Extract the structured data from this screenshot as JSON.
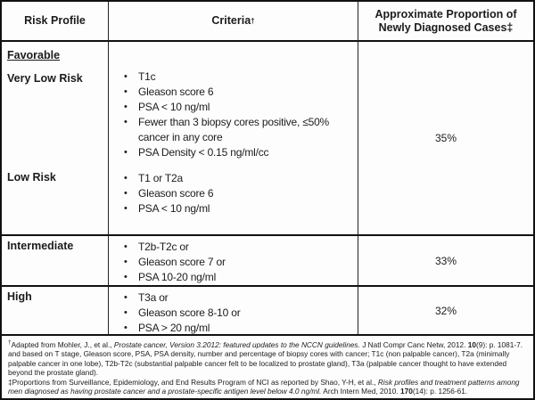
{
  "table": {
    "header": {
      "col1": "Risk Profile",
      "col2": "Criteria",
      "col2_sup": "†",
      "col3_line1": "Approximate Proportion of",
      "col3_line2": "Newly Diagnosed Cases‡"
    },
    "favorable": {
      "group_label": "Favorable",
      "sub_rows": [
        {
          "label": "Very Low Risk",
          "criteria": [
            "T1c",
            "Gleason score 6",
            "PSA < 10 ng/ml",
            "Fewer than 3 biopsy cores positive, ≤50%\ncancer in any core",
            "PSA Density < 0.15 ng/ml/cc"
          ]
        },
        {
          "label": "Low Risk",
          "criteria": [
            "T1 or T2a",
            "Gleason score 6",
            "PSA < 10 ng/ml"
          ]
        }
      ],
      "proportion": "35%"
    },
    "rows": [
      {
        "label": "Intermediate",
        "criteria": [
          "T2b-T2c or",
          "Gleason score 7 or",
          "PSA 10-20 ng/ml"
        ],
        "proportion": "33%"
      },
      {
        "label": "High",
        "criteria": [
          "T3a or",
          "Gleason score 8-10 or",
          "PSA > 20 ng/ml"
        ],
        "proportion": "32%"
      }
    ]
  },
  "footnotes": {
    "note1": [
      {
        "t": "†",
        "sup": true
      },
      {
        "t": "Adapted  from Mohler, J., et al., "
      },
      {
        "t": "Prostate cancer, Version 3.2012: featured updates to the NCCN guidelines.",
        "i": true
      },
      {
        "t": " J Natl Compr Canc Netw, 2012. "
      },
      {
        "t": "10",
        "b": true
      },
      {
        "t": "(9): p. 1081-7.  and based on T stage, Gleason score, PSA, PSA density, number and percentage of biopsy cores with cancer; T1c (non palpable cancer), T2a (minimally palpable cancer in one lobe), T2b-T2c (substantial palpable cancer felt to be localized to prostate gland), T3a (palpable cancer thought to have extended beyond the prostate gland)."
      }
    ],
    "note2": [
      {
        "t": "‡Proportions from Surveillance, Epidemiology, and End Results Program of NCI as reported by Shao, Y-H, et al., "
      },
      {
        "t": "Risk profiles and treatment patterns among men diagnosed as having prostate cancer and a prostate-specific antigen level below 4.0 ng/ml.",
        "i": true
      },
      {
        "t": " Arch Intern Med, 2010. "
      },
      {
        "t": "170",
        "b": true
      },
      {
        "t": "(14): p. 1256-61."
      }
    ]
  }
}
